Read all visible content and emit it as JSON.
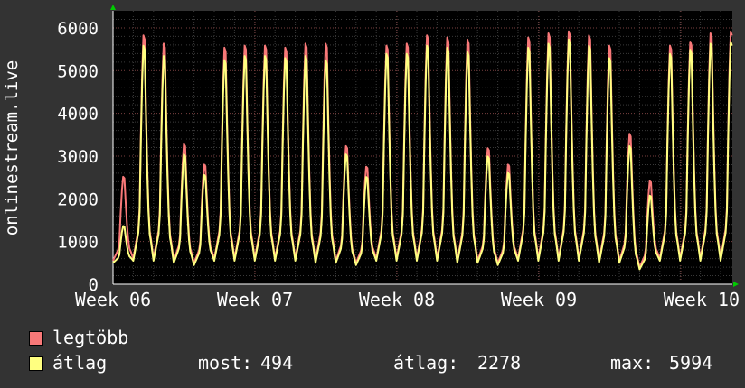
{
  "chart_data": {
    "type": "line",
    "ylabel": "onlinestream.live",
    "ylim": [
      0,
      6400
    ],
    "yticks": [
      0,
      1000,
      2000,
      3000,
      4000,
      5000,
      6000
    ],
    "xticks": [
      "Week 06",
      "Week 07",
      "Week 08",
      "Week 09",
      "Week 10"
    ],
    "grid": true,
    "series": [
      {
        "name": "legtöbb",
        "color": "#f87878",
        "day_peaks": [
          2600,
          6050,
          5850,
          3400,
          2900,
          5750,
          5800,
          5800,
          5750,
          5850,
          5850,
          3350,
          2850,
          5800,
          5850,
          6050,
          6000,
          5950,
          3300,
          2900,
          6000,
          6100,
          6150,
          6050,
          5800,
          3650,
          2500,
          5800,
          5900,
          6100,
          6150,
          5850
        ],
        "day_lows": [
          550,
          600,
          600,
          550,
          500,
          600,
          600,
          600,
          600,
          600,
          550,
          550,
          500,
          600,
          600,
          600,
          600,
          550,
          550,
          500,
          600,
          600,
          600,
          600,
          550,
          550,
          400,
          600,
          600,
          600,
          600,
          550,
          500
        ]
      },
      {
        "name": "átlag",
        "color": "#ffff80",
        "day_peaks": [
          1400,
          5800,
          5550,
          3150,
          2650,
          5450,
          5550,
          5550,
          5500,
          5550,
          5450,
          3150,
          2600,
          5600,
          5600,
          5800,
          5750,
          5650,
          3100,
          2700,
          5750,
          5850,
          5950,
          5800,
          5500,
          3350,
          2150,
          5600,
          5700,
          5850,
          5900,
          5500
        ],
        "day_lows": [
          500,
          550,
          550,
          500,
          450,
          550,
          550,
          550,
          550,
          550,
          500,
          500,
          450,
          550,
          550,
          550,
          550,
          500,
          500,
          450,
          550,
          550,
          550,
          550,
          500,
          500,
          350,
          550,
          550,
          550,
          550,
          500,
          450
        ]
      }
    ]
  },
  "legend": {
    "max_label": "legtöbb",
    "avg_label": "átlag",
    "now_label": "most:",
    "now_value": "494",
    "avg_stat_label": "átlag:",
    "avg_stat_value": "2278",
    "max_stat_label": "max:",
    "max_stat_value": "5994"
  },
  "colors": {
    "max": "#f87878",
    "avg": "#ffff80",
    "grid": "#606060",
    "plot_bg": "#000000",
    "page_bg": "#333333",
    "axis_arrow": "#00cc00"
  }
}
